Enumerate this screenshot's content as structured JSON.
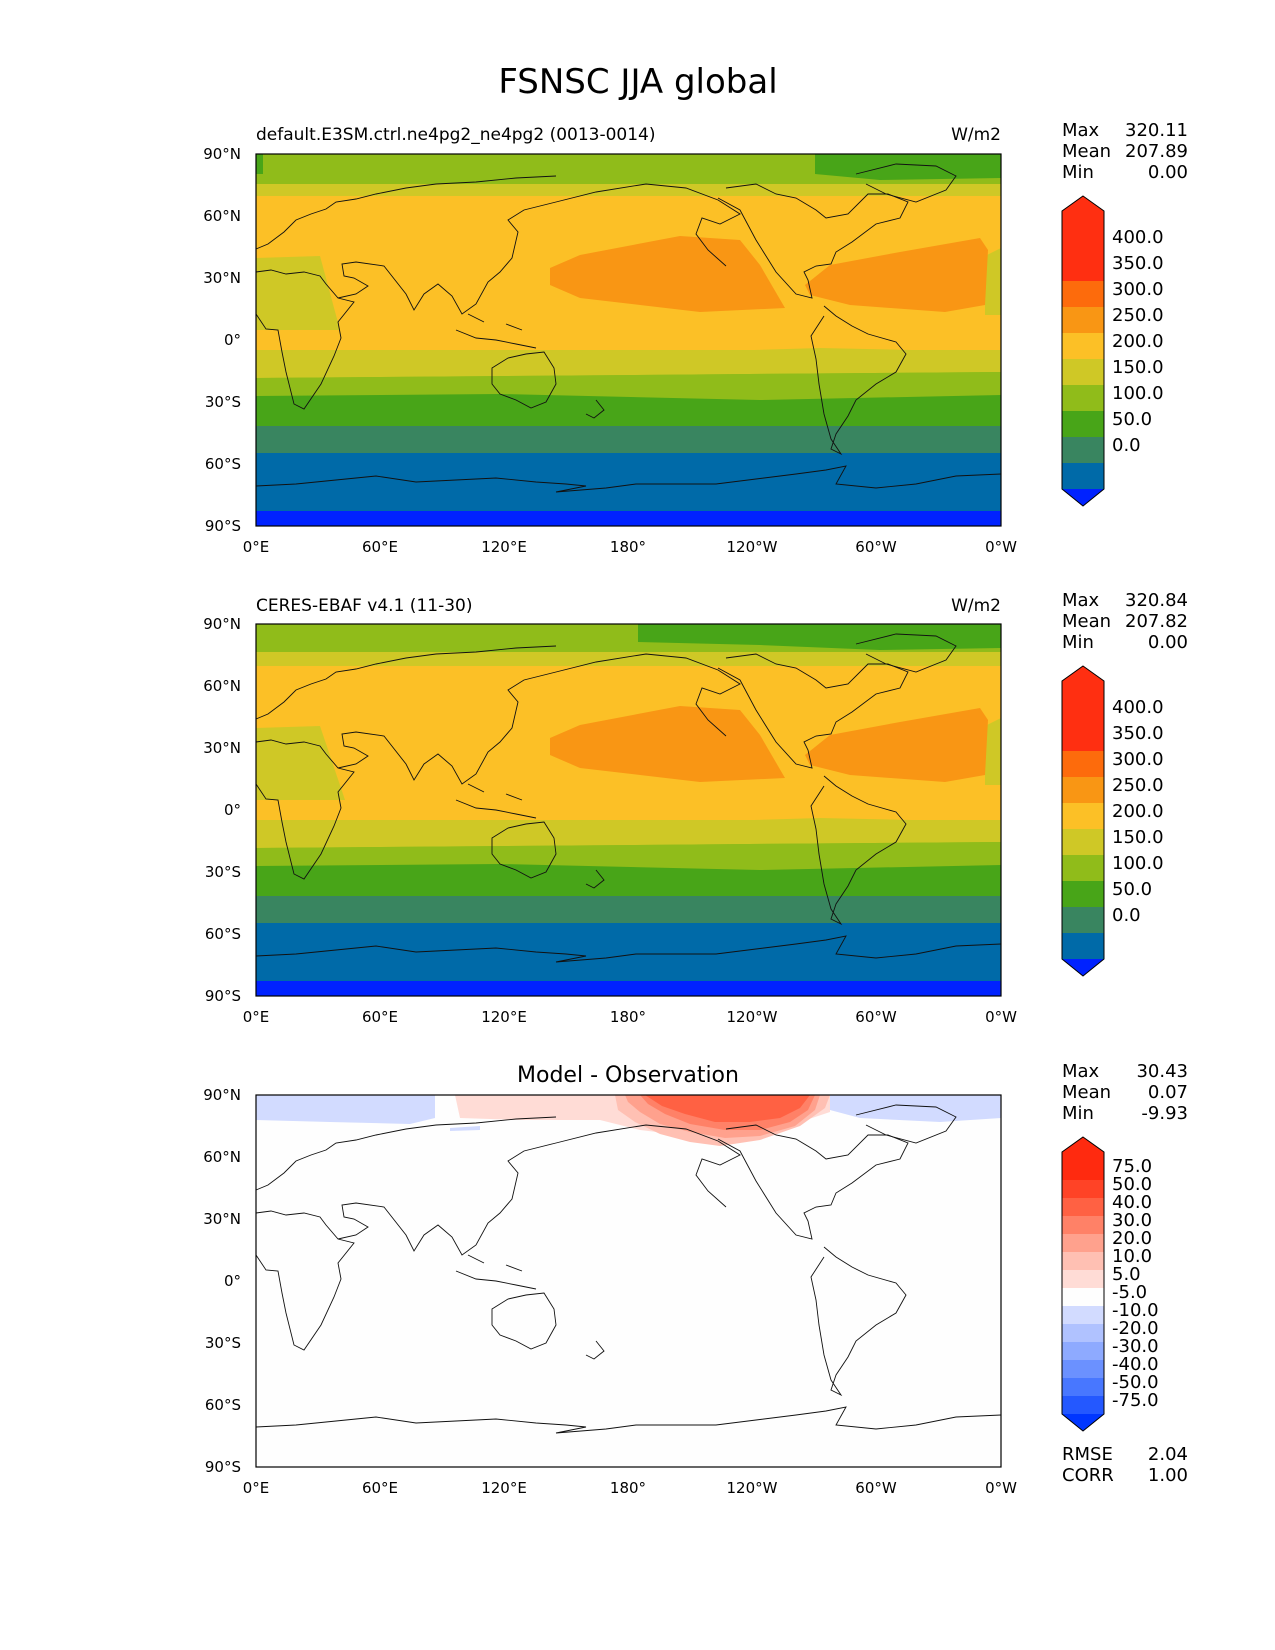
{
  "figure": {
    "title": "FSNSC JJA global",
    "lat_ticks": [
      "90°N",
      "60°N",
      "30°N",
      "0°",
      "30°S",
      "60°S",
      "90°S"
    ],
    "lon_ticks": [
      "0°E",
      "60°E",
      "120°E",
      "180°",
      "120°W",
      "60°W",
      "0°W"
    ]
  },
  "panels": [
    {
      "id": "model",
      "left_title": "default.E3SM.ctrl.ne4pg2_ne4pg2 (0013-0014)",
      "center_title": "",
      "units": "W/m2",
      "stats": [
        {
          "label": "Max",
          "value": "320.11"
        },
        {
          "label": "Mean",
          "value": "207.89"
        },
        {
          "label": "Min",
          "value": "0.00"
        }
      ],
      "colorbar_labels": [
        "400.0",
        "350.0",
        "300.0",
        "250.0",
        "200.0",
        "150.0",
        "100.0",
        "50.0",
        "0.0"
      ]
    },
    {
      "id": "obs",
      "left_title": "CERES-EBAF v4.1 (11-30)",
      "center_title": "",
      "units": "W/m2",
      "stats": [
        {
          "label": "Max",
          "value": "320.84"
        },
        {
          "label": "Mean",
          "value": "207.82"
        },
        {
          "label": "Min",
          "value": "0.00"
        }
      ],
      "colorbar_labels": [
        "400.0",
        "350.0",
        "300.0",
        "250.0",
        "200.0",
        "150.0",
        "100.0",
        "50.0",
        "0.0"
      ]
    },
    {
      "id": "diff",
      "left_title": "",
      "center_title": "Model - Observation",
      "units": "",
      "stats": [
        {
          "label": "Max",
          "value": "30.43"
        },
        {
          "label": "Mean",
          "value": "0.07"
        },
        {
          "label": "Min",
          "value": "-9.93"
        }
      ],
      "colorbar_labels": [
        "75.0",
        "50.0",
        "40.0",
        "30.0",
        "20.0",
        "10.0",
        "5.0",
        "-5.0",
        "-10.0",
        "-20.0",
        "-30.0",
        "-40.0",
        "-50.0",
        "-75.0"
      ],
      "metrics": [
        {
          "label": "RMSE",
          "value": "2.04"
        },
        {
          "label": "CORR",
          "value": "1.00"
        }
      ]
    }
  ],
  "colors": {
    "field_levels": [
      "#0022ff",
      "#006aa8",
      "#398560",
      "#48a518",
      "#90bc1a",
      "#cfc826",
      "#fcc026",
      "#f99614",
      "#fd6b0c",
      "#ff2f11"
    ],
    "diff_levels": [
      "#0036ff",
      "#2458ff",
      "#4877ff",
      "#6b91ff",
      "#8eaaff",
      "#b0c2ff",
      "#d2dbff",
      "#fefefe",
      "#ffdcd6",
      "#ffc0b3",
      "#ffa18d",
      "#ff8167",
      "#ff6143",
      "#ff4326",
      "#ff2a0f"
    ]
  }
}
